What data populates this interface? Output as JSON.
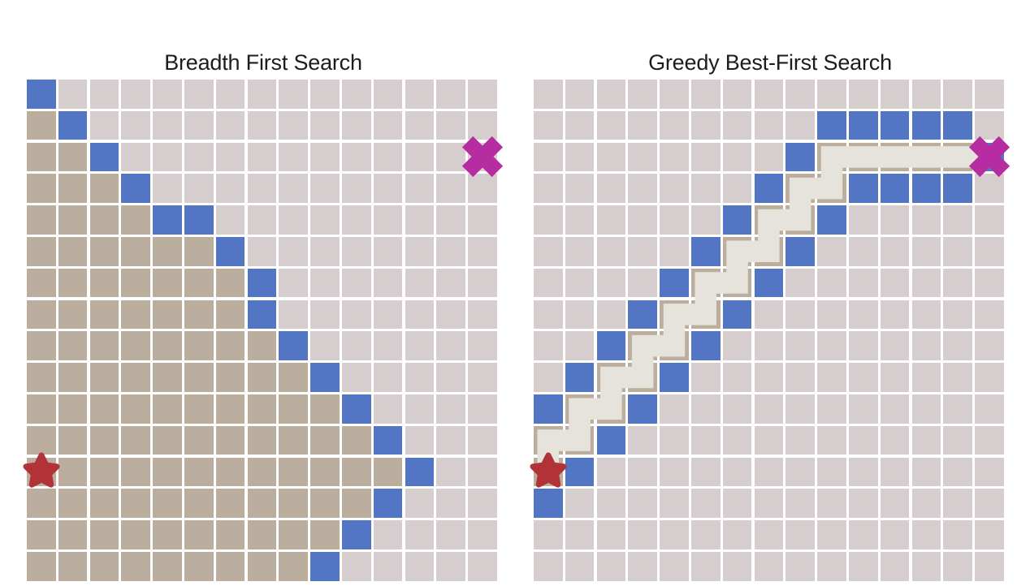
{
  "figure": {
    "description_left": "Breadth First Search",
    "description_right": "Greedy Best-First Search"
  },
  "colors": {
    "background": "#ffffff",
    "title_text": "#1c1c1e",
    "unexplored_cell": "#d5cdce",
    "explored_cell": "#bcae9e",
    "frontier_cell": "#5376c4",
    "path_line": "#e6e3dd",
    "start_star": "#b13237",
    "goal_x": "#b52da1"
  },
  "cell_legend": {
    ".": "unexplored",
    "T": "explored",
    "B": "frontier",
    "P": "explored-under-path"
  },
  "panels": [
    {
      "id": "bfs",
      "title": "Breadth First Search",
      "start": {
        "row": 12,
        "col": 0
      },
      "goal": {
        "row": 2,
        "col": 14
      },
      "rows": [
        "B..............",
        "TB.............",
        "TTB............",
        "TTTB...........",
        "TTTTBB.........",
        "TTTTTTB........",
        "TTTTTTTB.......",
        "TTTTTTTB.......",
        "TTTTTTTTB......",
        "TTTTTTTTTB.....",
        "TTTTTTTTTTB....",
        "TTTTTTTTTTTB...",
        "TTTTTTTTTTTTB..",
        "TTTTTTTTTTTB...",
        "TTTTTTTTTTB....",
        "TTTTTTTTTB....."
      ]
    },
    {
      "id": "greedy",
      "title": "Greedy Best-First Search",
      "start": {
        "row": 12,
        "col": 0
      },
      "goal": {
        "row": 2,
        "col": 14
      },
      "rows": [
        "...............",
        ".........BBBBB.",
        "........BPPPPPB",
        ".......BPPBBBB.",
        "......BPPB.....",
        ".....BPPB......",
        "....BPPB.......",
        "...BPPB........",
        "..BPPB.........",
        ".BPPB..........",
        "BPPB...........",
        "PPB............",
        "PB.............",
        "B..............",
        "...............",
        "..............."
      ],
      "path_points": [
        [
          12,
          0
        ],
        [
          11,
          0
        ],
        [
          11,
          1
        ],
        [
          10,
          1
        ],
        [
          10,
          2
        ],
        [
          9,
          2
        ],
        [
          9,
          3
        ],
        [
          8,
          3
        ],
        [
          8,
          4
        ],
        [
          7,
          4
        ],
        [
          7,
          5
        ],
        [
          6,
          5
        ],
        [
          6,
          6
        ],
        [
          5,
          6
        ],
        [
          5,
          7
        ],
        [
          4,
          7
        ],
        [
          4,
          8
        ],
        [
          3,
          8
        ],
        [
          3,
          9
        ],
        [
          2,
          9
        ],
        [
          2,
          13.65
        ]
      ]
    }
  ]
}
